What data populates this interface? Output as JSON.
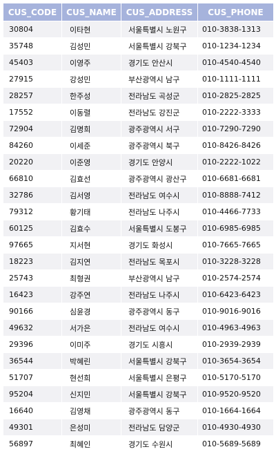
{
  "columns": [
    "CUS_CODE",
    "CUS_NAME",
    "CUS_ADDRESS",
    "CUS_PHONE"
  ],
  "rows": [
    [
      "30804",
      "이타현",
      "서울특별시 노원구",
      "010-3838-1313"
    ],
    [
      "35748",
      "김성민",
      "서울특별시 강북구",
      "010-1234-1234"
    ],
    [
      "45403",
      "이영주",
      "경기도 안산시",
      "010-4540-4540"
    ],
    [
      "27915",
      "강성민",
      "부산광역시 남구",
      "010-1111-1111"
    ],
    [
      "28257",
      "한주성",
      "전라남도 곡성군",
      "010-2825-2825"
    ],
    [
      "17552",
      "이동렬",
      "전라남도 강진군",
      "010-2222-3333"
    ],
    [
      "72904",
      "김명희",
      "광주광역시 서구",
      "010-7290-7290"
    ],
    [
      "84260",
      "이세준",
      "광주광역시 북구",
      "010-8426-8426"
    ],
    [
      "20220",
      "이준영",
      "경기도 안양시",
      "010-2222-1022"
    ],
    [
      "66810",
      "김효선",
      "광주광역시 광산구",
      "010-6681-6681"
    ],
    [
      "32786",
      "김서영",
      "전라남도 여수시",
      "010-8888-7412"
    ],
    [
      "79312",
      "황기태",
      "전라남도 나주시",
      "010-4466-7733"
    ],
    [
      "60125",
      "김효수",
      "서울특별시 도봉구",
      "010-6985-6985"
    ],
    [
      "97665",
      "지서현",
      "경기도 화성시",
      "010-7665-7665"
    ],
    [
      "18223",
      "김지연",
      "전라남도 목포시",
      "010-3228-3228"
    ],
    [
      "25743",
      "최형권",
      "부산광역시 남구",
      "010-2574-2574"
    ],
    [
      "16423",
      "강주연",
      "전라남도 나주시",
      "010-6423-6423"
    ],
    [
      "90166",
      "심윤경",
      "광주광역시 동구",
      "010-9016-9016"
    ],
    [
      "49632",
      "서가은",
      "전라남도 여수시",
      "010-4963-4963"
    ],
    [
      "29396",
      "이미주",
      "경기도 시흥시",
      "010-2939-2939"
    ],
    [
      "36544",
      "박혜린",
      "서울특별시 강북구",
      "010-3654-3654"
    ],
    [
      "51707",
      "현선희",
      "서울특별시 은평구",
      "010-5170-5170"
    ],
    [
      "95204",
      "신지민",
      "서울특별시 강북구",
      "010-9520-9520"
    ],
    [
      "16640",
      "김영채",
      "광주광역시 동구",
      "010-1664-1664"
    ],
    [
      "49301",
      "은성미",
      "전라남도 담양군",
      "010-4930-4930"
    ],
    [
      "56897",
      "최혜인",
      "경기도 수원시",
      "010-5689-5689"
    ]
  ],
  "colors": {
    "header_bg": "#a6b3dc",
    "header_text": "#ffffff",
    "row_odd_bg": "#f1f1f4",
    "row_even_bg": "#ffffff"
  }
}
